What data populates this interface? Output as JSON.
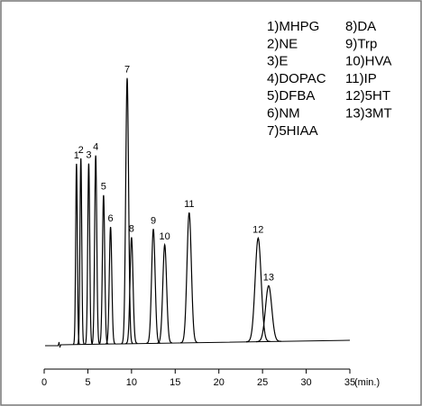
{
  "chart_data": {
    "type": "chromatogram",
    "x_label": "(min.)",
    "xlim": [
      0,
      35
    ],
    "xticks": [
      0,
      5,
      10,
      15,
      20,
      25,
      30,
      35
    ],
    "ylim": [
      0,
      100
    ],
    "color": "#000000",
    "peaks": {
      "labels": [
        "1",
        "2",
        "3",
        "4",
        "5",
        "6",
        "7",
        "8",
        "9",
        "10",
        "11",
        "12",
        "13"
      ],
      "x": [
        3.7,
        4.2,
        5.1,
        5.9,
        6.8,
        7.6,
        9.5,
        10.0,
        12.5,
        13.8,
        16.6,
        24.5,
        25.7
      ],
      "values": [
        68,
        70,
        68,
        71,
        56,
        44,
        100,
        40,
        43,
        37,
        49,
        39,
        21
      ]
    },
    "legend": [
      "1)MHPG",
      "2)NE",
      "3)E",
      "4)DOPAC",
      "5)DFBA",
      "6)NM",
      "7)5HIAA",
      "8)DA",
      "9)Trp",
      "10)HVA",
      "11)IP",
      "12)5HT",
      "13)3MT"
    ]
  }
}
